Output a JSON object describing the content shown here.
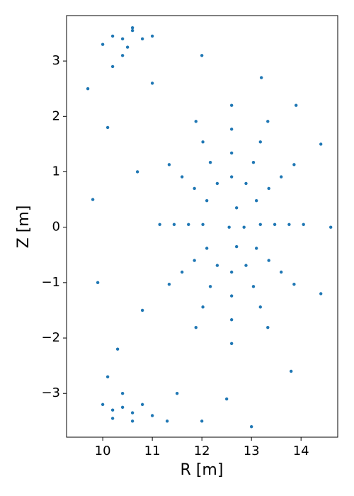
{
  "chart_data": {
    "type": "scatter",
    "xlabel": "R [m]",
    "ylabel": "Z [m]",
    "color": "#1f77b4",
    "xlim": [
      9.27,
      14.74
    ],
    "ylim": [
      -3.79,
      3.82
    ],
    "xticks": [
      10,
      11,
      12,
      13,
      14
    ],
    "yticks": [
      {
        "value": -3,
        "label": "−3"
      },
      {
        "value": -2,
        "label": "−2"
      },
      {
        "value": -1,
        "label": "−1"
      },
      0,
      1,
      2,
      3
    ],
    "x": [
      14.05,
      13.86,
      13.33,
      12.6,
      11.88,
      11.34,
      11.15,
      11.34,
      11.88,
      12.6,
      13.33,
      13.86,
      13.76,
      13.6,
      13.18,
      12.6,
      12.02,
      11.6,
      11.44,
      11.6,
      12.02,
      12.6,
      13.18,
      13.6,
      13.47,
      13.35,
      13.04,
      12.6,
      12.17,
      11.85,
      11.73,
      11.85,
      12.17,
      12.6,
      13.04,
      13.35,
      13.18,
      13.1,
      12.89,
      12.6,
      12.31,
      12.1,
      12.02,
      12.1,
      12.31,
      12.6,
      12.89,
      13.1,
      12.85,
      12.7,
      12.55,
      12.7,
      14.4,
      14.6,
      14.4,
      13.8,
      12.5,
      11.5,
      10.3,
      9.9,
      9.8,
      10.1,
      11,
      12,
      13.2,
      13.9,
      10.8,
      10.7,
      9.7,
      10.1,
      13,
      12,
      10.2,
      10.4,
      10.6,
      10.8,
      11.0,
      10.5,
      10.4,
      10.2,
      10.0,
      10.6,
      10.0,
      10.2,
      10.4,
      10.6,
      10.8,
      11.0,
      10.4,
      10.2,
      11.3,
      10.6
    ],
    "values": [
      0.05,
      1.13,
      1.91,
      2.2,
      1.91,
      1.13,
      0.05,
      -1.03,
      -1.81,
      -2.1,
      -1.81,
      -1.03,
      0.05,
      0.91,
      1.54,
      1.77,
      1.54,
      0.91,
      0.05,
      -0.81,
      -1.44,
      -1.67,
      -1.44,
      -0.81,
      0.05,
      0.7,
      1.17,
      1.34,
      1.17,
      0.7,
      0.05,
      -0.6,
      -1.07,
      -1.24,
      -1.07,
      -0.6,
      0.05,
      0.48,
      0.79,
      0.91,
      0.79,
      0.48,
      0.05,
      -0.38,
      -0.69,
      -0.81,
      -0.69,
      -0.38,
      0,
      0.35,
      0,
      -0.35,
      1.5,
      0,
      -1.2,
      -2.6,
      -3.1,
      -3.0,
      -2.2,
      -1,
      0.5,
      1.8,
      2.6,
      3.1,
      2.7,
      2.2,
      -1.5,
      1,
      2.5,
      -2.7,
      -3.6,
      -3.5,
      3.45,
      3.4,
      3.55,
      3.4,
      3.45,
      3.25,
      3.1,
      2.9,
      3.3,
      3.6,
      -3.2,
      -3.3,
      -3.25,
      -3.35,
      -3.2,
      -3.4,
      -3.0,
      -3.45,
      -3.5,
      -3.5
    ]
  }
}
